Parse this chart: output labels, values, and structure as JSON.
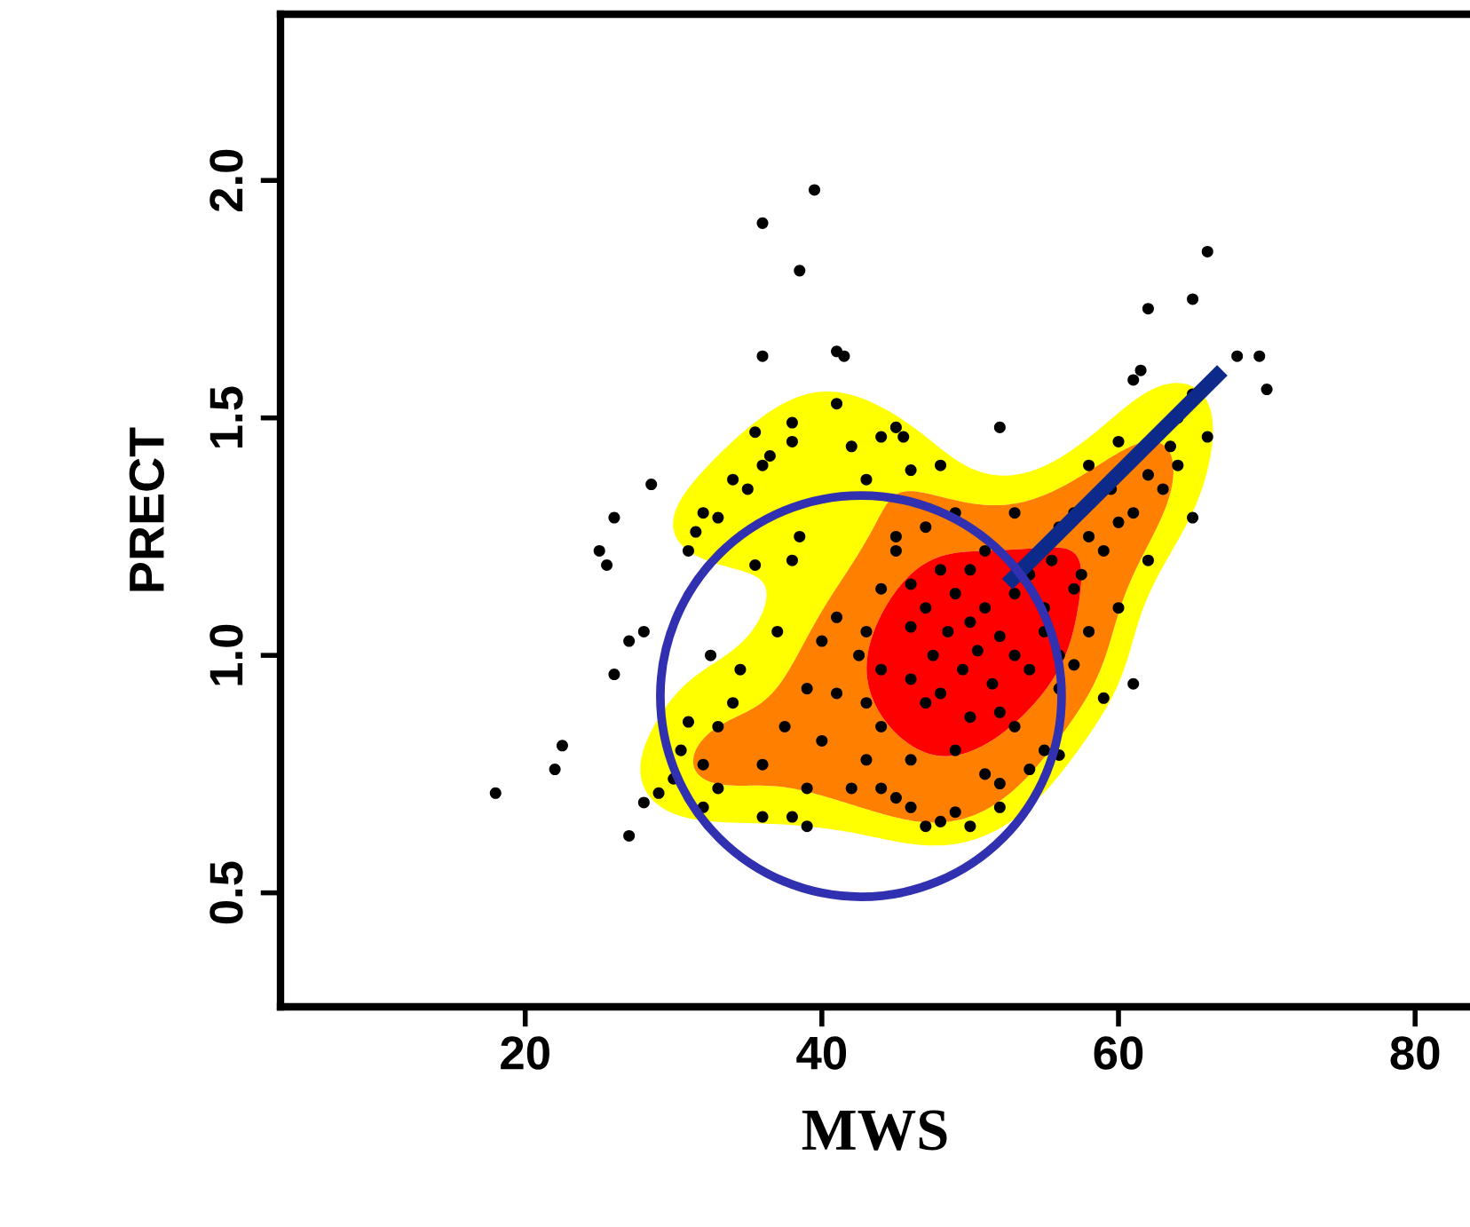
{
  "chart_data": {
    "type": "scatter",
    "xlabel": "MWS",
    "ylabel": "PRECT",
    "xlim": [
      3.5,
      83.7
    ],
    "ylim": [
      0.26,
      2.35
    ],
    "xticks": [
      20,
      40,
      60,
      80
    ],
    "yticks": [
      0.5,
      {
        "value": 1,
        "label": "1.0"
      },
      1.5,
      {
        "value": 2,
        "label": "2.0"
      }
    ],
    "grid": false,
    "tick_labels": true,
    "series": [
      {
        "color": "#000000",
        "marker": "circle",
        "x": [
          18,
          22,
          22.5,
          26,
          27,
          27,
          28,
          28,
          28.5,
          25,
          25.5,
          26,
          29,
          30,
          31,
          31.5,
          32,
          33,
          34,
          35,
          32.5,
          33,
          31,
          30.5,
          32,
          33,
          32,
          34.5,
          34,
          35.5,
          36,
          36.5,
          35.5,
          36,
          36,
          38.5,
          39.5,
          38,
          38,
          41,
          41.5,
          41,
          42,
          43,
          44,
          45,
          45.5,
          46,
          48,
          52,
          38,
          38.5,
          37,
          36,
          36,
          38,
          40,
          41,
          39,
          37.5,
          40,
          41,
          42.5,
          43,
          43,
          44,
          45,
          46,
          47,
          48,
          49,
          50,
          52,
          52,
          51,
          54,
          55,
          56,
          44,
          45,
          46,
          46,
          47,
          47.5,
          48,
          48.5,
          49,
          49.5,
          50,
          50.5,
          51,
          51.5,
          52,
          52,
          53,
          53,
          54,
          54,
          55,
          55.5,
          56,
          56,
          57,
          57.5,
          58,
          58,
          59,
          59.5,
          60,
          60,
          61,
          61,
          62,
          62,
          63,
          63.5,
          64,
          64,
          65,
          65,
          66,
          61,
          62,
          61.5,
          65,
          66,
          68,
          69.5,
          70,
          59,
          56,
          53,
          49,
          46,
          44,
          42,
          39,
          45,
          47,
          49,
          51,
          53,
          50,
          48,
          46,
          43,
          44,
          47,
          50,
          55,
          57,
          58,
          60,
          57,
          39
        ],
        "values": [
          0.71,
          0.76,
          0.81,
          0.96,
          1.03,
          0.62,
          0.69,
          1.05,
          1.36,
          1.22,
          1.19,
          1.29,
          0.71,
          0.74,
          1.22,
          1.26,
          1.3,
          1.29,
          1.37,
          1.35,
          1.0,
          0.85,
          0.86,
          0.8,
          0.77,
          0.72,
          0.68,
          0.97,
          0.9,
          1.19,
          1.4,
          1.42,
          1.47,
          1.63,
          1.91,
          1.81,
          1.98,
          1.49,
          1.45,
          1.64,
          1.63,
          1.53,
          1.44,
          1.37,
          1.46,
          1.48,
          1.46,
          1.39,
          1.4,
          1.48,
          1.2,
          1.25,
          1.05,
          0.77,
          0.66,
          0.66,
          0.82,
          0.92,
          0.93,
          0.85,
          1.03,
          1.08,
          1.0,
          0.9,
          0.78,
          0.72,
          0.7,
          0.68,
          0.64,
          0.65,
          0.67,
          0.64,
          0.68,
          0.73,
          0.75,
          0.76,
          0.8,
          0.79,
          1.14,
          1.22,
          1.06,
          0.95,
          1.1,
          1.0,
          0.92,
          1.05,
          1.13,
          0.97,
          1.07,
          1.01,
          1.1,
          0.94,
          1.04,
          0.88,
          1.0,
          1.13,
          1.17,
          0.97,
          1.1,
          1.2,
          1.27,
          0.93,
          1.3,
          1.17,
          1.25,
          1.05,
          1.22,
          1.35,
          1.28,
          1.1,
          1.3,
          0.94,
          1.38,
          1.2,
          1.35,
          1.44,
          1.5,
          1.4,
          1.55,
          1.29,
          1.46,
          1.58,
          1.73,
          1.6,
          1.75,
          1.85,
          1.63,
          1.63,
          1.56,
          0.91,
          1.0,
          0.85,
          0.8,
          0.78,
          0.85,
          0.72,
          0.72,
          1.25,
          1.27,
          1.3,
          1.22,
          1.3,
          1.18,
          1.18,
          1.15,
          1.05,
          0.97,
          0.9,
          0.87,
          1.05,
          1.14,
          1.4,
          1.45,
          0.98,
          0.64
        ]
      },
      {
        "type": "line",
        "color": "#0d2a8a",
        "marker": "none",
        "x": [
          52.5,
          67
        ],
        "values": [
          1.15,
          1.6
        ]
      }
    ]
  }
}
